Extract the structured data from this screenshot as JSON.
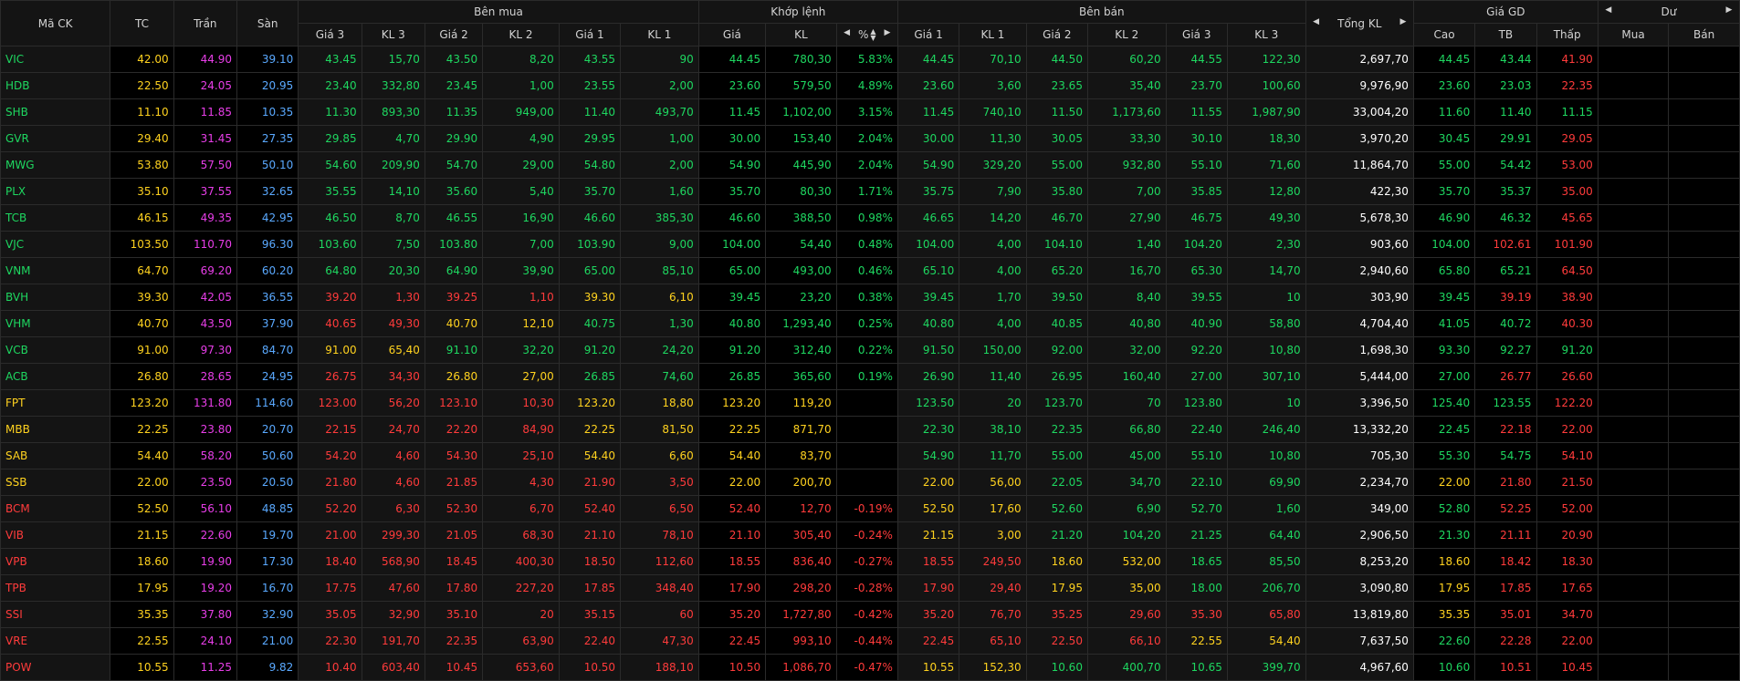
{
  "colors": {
    "up": "#1ed760",
    "down": "#ff3b3b",
    "ref": "#ffd21f",
    "ceil": "#e83ee8",
    "floor": "#5aa9ff"
  },
  "header": {
    "symbol": "Mã CK",
    "ref": "TC",
    "ceiling": "Trần",
    "floor": "Sàn",
    "buy_group": "Bên mua",
    "match_group": "Khớp lệnh",
    "sell_group": "Bên bán",
    "total_vol": "Tổng KL",
    "price_group": "Giá GD",
    "remain_group": "Dư",
    "buy_cols": [
      "Giá 3",
      "KL 3",
      "Giá 2",
      "KL 2",
      "Giá 1",
      "KL 1"
    ],
    "match_cols": [
      "Giá",
      "KL",
      "%"
    ],
    "sell_cols": [
      "Giá 1",
      "KL 1",
      "Giá 2",
      "KL 2",
      "Giá 3",
      "KL 3"
    ],
    "price_cols": [
      "Cao",
      "TB",
      "Thấp"
    ],
    "remain_cols": [
      "Mua",
      "Bán"
    ]
  },
  "rows": [
    {
      "v": [
        "VIC",
        "42.00",
        "44.90",
        "39.10",
        "43.45",
        "15,70",
        "43.50",
        "8,20",
        "43.55",
        "90",
        "44.45",
        "780,30",
        "5.83%",
        "44.45",
        "70,10",
        "44.50",
        "60,20",
        "44.55",
        "122,30",
        "2,697,70",
        "44.45",
        "43.44",
        "41.90",
        "",
        ""
      ],
      "c": "uerCFuuuuuuuuuuuuuuwuud"
    },
    {
      "v": [
        "HDB",
        "22.50",
        "24.05",
        "20.95",
        "23.40",
        "332,80",
        "23.45",
        "1,00",
        "23.55",
        "2,00",
        "23.60",
        "579,50",
        "4.89%",
        "23.60",
        "3,60",
        "23.65",
        "35,40",
        "23.70",
        "100,60",
        "9,976,90",
        "23.60",
        "23.03",
        "22.35",
        "",
        ""
      ],
      "c": "uerCFuuuuuuuuuuuuuuwuud"
    },
    {
      "v": [
        "SHB",
        "11.10",
        "11.85",
        "10.35",
        "11.30",
        "893,30",
        "11.35",
        "949,00",
        "11.40",
        "493,70",
        "11.45",
        "1,102,00",
        "3.15%",
        "11.45",
        "740,10",
        "11.50",
        "1,173,60",
        "11.55",
        "1,987,90",
        "33,004,20",
        "11.60",
        "11.40",
        "11.15",
        "",
        ""
      ],
      "c": "uerCFuuuuuuuuuuuuuuwuuu"
    },
    {
      "v": [
        "GVR",
        "29.40",
        "31.45",
        "27.35",
        "29.85",
        "4,70",
        "29.90",
        "4,90",
        "29.95",
        "1,00",
        "30.00",
        "153,40",
        "2.04%",
        "30.00",
        "11,30",
        "30.05",
        "33,30",
        "30.10",
        "18,30",
        "3,970,20",
        "30.45",
        "29.91",
        "29.05",
        "",
        ""
      ],
      "c": "uerCFuuuuuuuuuuuuuuwuud"
    },
    {
      "v": [
        "MWG",
        "53.80",
        "57.50",
        "50.10",
        "54.60",
        "209,90",
        "54.70",
        "29,00",
        "54.80",
        "2,00",
        "54.90",
        "445,90",
        "2.04%",
        "54.90",
        "329,20",
        "55.00",
        "932,80",
        "55.10",
        "71,60",
        "11,864,70",
        "55.00",
        "54.42",
        "53.00",
        "",
        ""
      ],
      "c": "uerCFuuuuuuuuuuuuuuwuud"
    },
    {
      "v": [
        "PLX",
        "35.10",
        "37.55",
        "32.65",
        "35.55",
        "14,10",
        "35.60",
        "5,40",
        "35.70",
        "1,60",
        "35.70",
        "80,30",
        "1.71%",
        "35.75",
        "7,90",
        "35.80",
        "7,00",
        "35.85",
        "12,80",
        "422,30",
        "35.70",
        "35.37",
        "35.00",
        "",
        ""
      ],
      "c": "uerCFuuuuuuuuuuuuuuwuud"
    },
    {
      "v": [
        "TCB",
        "46.15",
        "49.35",
        "42.95",
        "46.50",
        "8,70",
        "46.55",
        "16,90",
        "46.60",
        "385,30",
        "46.60",
        "388,50",
        "0.98%",
        "46.65",
        "14,20",
        "46.70",
        "27,90",
        "46.75",
        "49,30",
        "5,678,30",
        "46.90",
        "46.32",
        "45.65",
        "",
        ""
      ],
      "c": "uerCFuuuuuuuuuuuuuuwuud"
    },
    {
      "v": [
        "VJC",
        "103.50",
        "110.70",
        "96.30",
        "103.60",
        "7,50",
        "103.80",
        "7,00",
        "103.90",
        "9,00",
        "104.00",
        "54,40",
        "0.48%",
        "104.00",
        "4,00",
        "104.10",
        "1,40",
        "104.20",
        "2,30",
        "903,60",
        "104.00",
        "102.61",
        "101.90",
        "",
        ""
      ],
      "c": "uerCFuuuuuuuuuuuuuuwudd"
    },
    {
      "v": [
        "VNM",
        "64.70",
        "69.20",
        "60.20",
        "64.80",
        "20,30",
        "64.90",
        "39,90",
        "65.00",
        "85,10",
        "65.00",
        "493,00",
        "0.46%",
        "65.10",
        "4,00",
        "65.20",
        "16,70",
        "65.30",
        "14,70",
        "2,940,60",
        "65.80",
        "65.21",
        "64.50",
        "",
        ""
      ],
      "c": "uerCFuuuuuuuuuuuuuuwuud"
    },
    {
      "v": [
        "BVH",
        "39.30",
        "42.05",
        "36.55",
        "39.20",
        "1,30",
        "39.25",
        "1,10",
        "39.30",
        "6,10",
        "39.45",
        "23,20",
        "0.38%",
        "39.45",
        "1,70",
        "39.50",
        "8,40",
        "39.55",
        "10",
        "303,90",
        "39.45",
        "39.19",
        "38.90",
        "",
        ""
      ],
      "c": "uerCFddddrruuuuuuuuuwudd"
    },
    {
      "v": [
        "VHM",
        "40.70",
        "43.50",
        "37.90",
        "40.65",
        "49,30",
        "40.70",
        "12,10",
        "40.75",
        "1,30",
        "40.80",
        "1,293,40",
        "0.25%",
        "40.80",
        "4,00",
        "40.85",
        "40,80",
        "40.90",
        "58,80",
        "4,704,40",
        "41.05",
        "40.72",
        "40.30",
        "",
        ""
      ],
      "c": "uerCFddrruuuuuuuuuuwuud"
    },
    {
      "v": [
        "VCB",
        "91.00",
        "97.30",
        "84.70",
        "91.00",
        "65,40",
        "91.10",
        "32,20",
        "91.20",
        "24,20",
        "91.20",
        "312,40",
        "0.22%",
        "91.50",
        "150,00",
        "92.00",
        "32,00",
        "92.20",
        "10,80",
        "1,698,30",
        "93.30",
        "92.27",
        "91.20",
        "",
        ""
      ],
      "c": "uerCFrruuuuuuuuuuuuuwuuu"
    },
    {
      "v": [
        "ACB",
        "26.80",
        "28.65",
        "24.95",
        "26.75",
        "34,30",
        "26.80",
        "27,00",
        "26.85",
        "74,60",
        "26.85",
        "365,60",
        "0.19%",
        "26.90",
        "11,40",
        "26.95",
        "160,40",
        "27.00",
        "307,10",
        "5,444,00",
        "27.00",
        "26.77",
        "26.60",
        "",
        ""
      ],
      "c": "uerCFddrruuuuuuuuuuwudd"
    },
    {
      "v": [
        "FPT",
        "123.20",
        "131.80",
        "114.60",
        "123.00",
        "56,20",
        "123.10",
        "10,30",
        "123.20",
        "18,80",
        "123.20",
        "119,20",
        "",
        "123.50",
        "20",
        "123.70",
        "70",
        "123.80",
        "10",
        "3,396,50",
        "125.40",
        "123.55",
        "122.20",
        "",
        ""
      ],
      "c": "uerCFddddrrrrruuuuuuwuud"
    },
    {
      "v": [
        "MBB",
        "22.25",
        "23.80",
        "20.70",
        "22.15",
        "24,70",
        "22.20",
        "84,90",
        "22.25",
        "81,50",
        "22.25",
        "871,70",
        "",
        "22.30",
        "38,10",
        "22.35",
        "66,80",
        "22.40",
        "246,40",
        "13,332,20",
        "22.45",
        "22.18",
        "22.00",
        "",
        ""
      ],
      "c": "uerCFddddrrrrruuuuuuwudd"
    },
    {
      "v": [
        "SAB",
        "54.40",
        "58.20",
        "50.60",
        "54.20",
        "4,60",
        "54.30",
        "25,10",
        "54.40",
        "6,60",
        "54.40",
        "83,70",
        "",
        "54.90",
        "11,70",
        "55.00",
        "45,00",
        "55.10",
        "10,80",
        "705,30",
        "55.30",
        "54.75",
        "54.10",
        "",
        ""
      ],
      "c": "uerCFddddrrrrruuuuuuwuud"
    },
    {
      "v": [
        "SSB",
        "22.00",
        "23.50",
        "20.50",
        "21.80",
        "4,60",
        "21.85",
        "4,30",
        "21.90",
        "3,50",
        "22.00",
        "200,70",
        "",
        "22.00",
        "56,00",
        "22.05",
        "34,70",
        "22.10",
        "69,90",
        "2,234,70",
        "22.00",
        "21.80",
        "21.50",
        "",
        ""
      ],
      "c": "uerCFddddddrrrrruuuuwrdd"
    },
    {
      "v": [
        "BCM",
        "52.50",
        "56.10",
        "48.85",
        "52.20",
        "6,30",
        "52.30",
        "6,70",
        "52.40",
        "6,50",
        "52.40",
        "12,70",
        "-0.19%",
        "52.50",
        "17,60",
        "52.60",
        "6,90",
        "52.70",
        "1,60",
        "349,00",
        "52.80",
        "52.25",
        "52.00",
        "",
        ""
      ],
      "c": "uerCFdddddddddrruuuuwudd"
    },
    {
      "v": [
        "VIB",
        "21.15",
        "22.60",
        "19.70",
        "21.00",
        "299,30",
        "21.05",
        "68,30",
        "21.10",
        "78,10",
        "21.10",
        "305,40",
        "-0.24%",
        "21.15",
        "3,00",
        "21.20",
        "104,20",
        "21.25",
        "64,40",
        "2,906,50",
        "21.30",
        "21.11",
        "20.90",
        "",
        ""
      ],
      "c": "uerCFdddddddddrruuuuwudd"
    },
    {
      "v": [
        "VPB",
        "18.60",
        "19.90",
        "17.30",
        "18.40",
        "568,90",
        "18.45",
        "400,30",
        "18.50",
        "112,60",
        "18.55",
        "836,40",
        "-0.27%",
        "18.55",
        "249,50",
        "18.60",
        "532,00",
        "18.65",
        "85,50",
        "8,253,20",
        "18.60",
        "18.42",
        "18.30",
        "",
        ""
      ],
      "c": "uerCFddddddddddrruuuwrdd"
    },
    {
      "v": [
        "TPB",
        "17.95",
        "19.20",
        "16.70",
        "17.75",
        "47,60",
        "17.80",
        "227,20",
        "17.85",
        "348,40",
        "17.90",
        "298,20",
        "-0.28%",
        "17.90",
        "29,40",
        "17.95",
        "35,00",
        "18.00",
        "206,70",
        "3,090,80",
        "17.95",
        "17.85",
        "17.65",
        "",
        ""
      ],
      "c": "uerCFdddddddddddrruuwrdd"
    },
    {
      "v": [
        "SSI",
        "35.35",
        "37.80",
        "32.90",
        "35.05",
        "32,90",
        "35.10",
        "20",
        "35.15",
        "60",
        "35.20",
        "1,727,80",
        "-0.42%",
        "35.20",
        "76,70",
        "35.25",
        "29,60",
        "35.30",
        "65,80",
        "13,819,80",
        "35.35",
        "35.01",
        "34.70",
        "",
        ""
      ],
      "c": "uerCFddddddddddddddddwrdd"
    },
    {
      "v": [
        "VRE",
        "22.55",
        "24.10",
        "21.00",
        "22.30",
        "191,70",
        "22.35",
        "63,90",
        "22.40",
        "47,30",
        "22.45",
        "993,10",
        "-0.44%",
        "22.45",
        "65,10",
        "22.50",
        "66,10",
        "22.55",
        "54,40",
        "7,637,50",
        "22.60",
        "22.28",
        "22.00",
        "",
        ""
      ],
      "c": "dCFdddddddddddddddrrwudd"
    },
    {
      "v": [
        "POW",
        "10.55",
        "11.25",
        "9.82",
        "10.40",
        "603,40",
        "10.45",
        "653,60",
        "10.50",
        "188,10",
        "10.50",
        "1,086,70",
        "-0.47%",
        "10.55",
        "152,30",
        "10.60",
        "400,70",
        "10.65",
        "399,70",
        "4,967,60",
        "10.60",
        "10.51",
        "10.45",
        "",
        ""
      ],
      "c": "uerCFddddddddddddrruuuuwudd"
    }
  ]
}
